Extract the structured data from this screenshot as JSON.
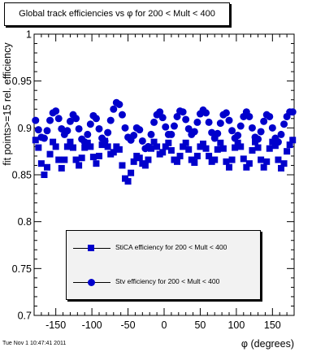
{
  "title": "Global track efficiencies vs φ for 200 < Mult < 400",
  "footer": "Tue Nov  1 10:47:41 2011",
  "chart_data": {
    "type": "scatter",
    "xlabel": "φ (degrees)",
    "ylabel": "fit points>=15 rel. efficiency",
    "xlim": [
      -180,
      180
    ],
    "ylim": [
      0.7,
      1.0
    ],
    "xticks": [
      -150,
      -100,
      -50,
      0,
      50,
      100,
      150
    ],
    "yticks": [
      0.7,
      0.75,
      0.8,
      0.85,
      0.9,
      0.95,
      1.0
    ],
    "xtick_labels": [
      "-150",
      "-100",
      "-50",
      "0",
      "50",
      "100",
      "150"
    ],
    "ytick_labels": [
      "0.7",
      "0.75",
      "0.8",
      "0.85",
      "0.9",
      "0.95",
      "1"
    ],
    "legend_position": "lower-center",
    "series": [
      {
        "name": "StiCA efficiency  for 200 < Mult < 400",
        "marker": "square",
        "color": "#0000cc",
        "x": [
          -178,
          -174,
          -170,
          -166,
          -162,
          -158,
          -154,
          -150,
          -146,
          -142,
          -138,
          -134,
          -130,
          -126,
          -122,
          -118,
          -114,
          -110,
          -106,
          -102,
          -98,
          -94,
          -90,
          -86,
          -82,
          -78,
          -74,
          -70,
          -66,
          -62,
          -58,
          -54,
          -50,
          -46,
          -42,
          -38,
          -34,
          -30,
          -26,
          -22,
          -18,
          -14,
          -10,
          -6,
          -2,
          2,
          6,
          10,
          14,
          18,
          22,
          26,
          30,
          34,
          38,
          42,
          46,
          50,
          54,
          58,
          62,
          66,
          70,
          74,
          78,
          82,
          86,
          90,
          94,
          98,
          102,
          106,
          110,
          114,
          118,
          122,
          126,
          130,
          134,
          138,
          142,
          146,
          150,
          154,
          158,
          162,
          166,
          170,
          174,
          178
        ],
        "y": [
          0.887,
          0.879,
          0.862,
          0.85,
          0.858,
          0.872,
          0.885,
          0.88,
          0.866,
          0.857,
          0.866,
          0.88,
          0.885,
          0.879,
          0.866,
          0.86,
          0.868,
          0.879,
          0.884,
          0.88,
          0.869,
          0.862,
          0.87,
          0.882,
          0.886,
          0.88,
          0.872,
          0.874,
          0.88,
          0.877,
          0.86,
          0.846,
          0.843,
          0.852,
          0.864,
          0.87,
          0.868,
          0.862,
          0.86,
          0.866,
          0.878,
          0.885,
          0.88,
          0.872,
          0.874,
          0.88,
          0.884,
          0.876,
          0.866,
          0.864,
          0.87,
          0.88,
          0.884,
          0.877,
          0.866,
          0.863,
          0.87,
          0.88,
          0.883,
          0.878,
          0.87,
          0.864,
          0.866,
          0.877,
          0.884,
          0.878,
          0.864,
          0.858,
          0.866,
          0.879,
          0.884,
          0.88,
          0.867,
          0.858,
          0.862,
          0.876,
          0.885,
          0.879,
          0.866,
          0.858,
          0.864,
          0.878,
          0.885,
          0.881,
          0.866,
          0.857,
          0.862,
          0.875,
          0.882,
          0.887
        ]
      },
      {
        "name": "Stv efficiency  for 200 < Mult < 400",
        "marker": "circle",
        "color": "#0000cc",
        "x": [
          -178,
          -174,
          -170,
          -166,
          -162,
          -158,
          -154,
          -150,
          -146,
          -142,
          -138,
          -134,
          -130,
          -126,
          -122,
          -118,
          -114,
          -110,
          -106,
          -102,
          -98,
          -94,
          -90,
          -86,
          -82,
          -78,
          -74,
          -70,
          -66,
          -62,
          -58,
          -54,
          -50,
          -46,
          -42,
          -38,
          -34,
          -30,
          -26,
          -22,
          -18,
          -14,
          -10,
          -6,
          -2,
          2,
          6,
          10,
          14,
          18,
          22,
          26,
          30,
          34,
          38,
          42,
          46,
          50,
          54,
          58,
          62,
          66,
          70,
          74,
          78,
          82,
          86,
          90,
          94,
          98,
          102,
          106,
          110,
          114,
          118,
          122,
          126,
          130,
          134,
          138,
          142,
          146,
          150,
          154,
          158,
          162,
          166,
          170,
          174,
          178
        ],
        "y": [
          0.908,
          0.898,
          0.89,
          0.889,
          0.897,
          0.908,
          0.916,
          0.918,
          0.91,
          0.899,
          0.893,
          0.897,
          0.907,
          0.914,
          0.91,
          0.899,
          0.888,
          0.885,
          0.893,
          0.904,
          0.913,
          0.91,
          0.899,
          0.889,
          0.886,
          0.895,
          0.908,
          0.92,
          0.927,
          0.925,
          0.914,
          0.9,
          0.89,
          0.887,
          0.892,
          0.9,
          0.898,
          0.886,
          0.878,
          0.88,
          0.893,
          0.906,
          0.914,
          0.917,
          0.911,
          0.901,
          0.893,
          0.893,
          0.902,
          0.912,
          0.918,
          0.917,
          0.909,
          0.899,
          0.893,
          0.896,
          0.906,
          0.915,
          0.919,
          0.916,
          0.906,
          0.895,
          0.889,
          0.894,
          0.905,
          0.914,
          0.916,
          0.908,
          0.897,
          0.889,
          0.892,
          0.902,
          0.912,
          0.917,
          0.912,
          0.9,
          0.89,
          0.888,
          0.896,
          0.907,
          0.914,
          0.912,
          0.9,
          0.889,
          0.885,
          0.893,
          0.904,
          0.912,
          0.917,
          0.917
        ]
      }
    ]
  }
}
